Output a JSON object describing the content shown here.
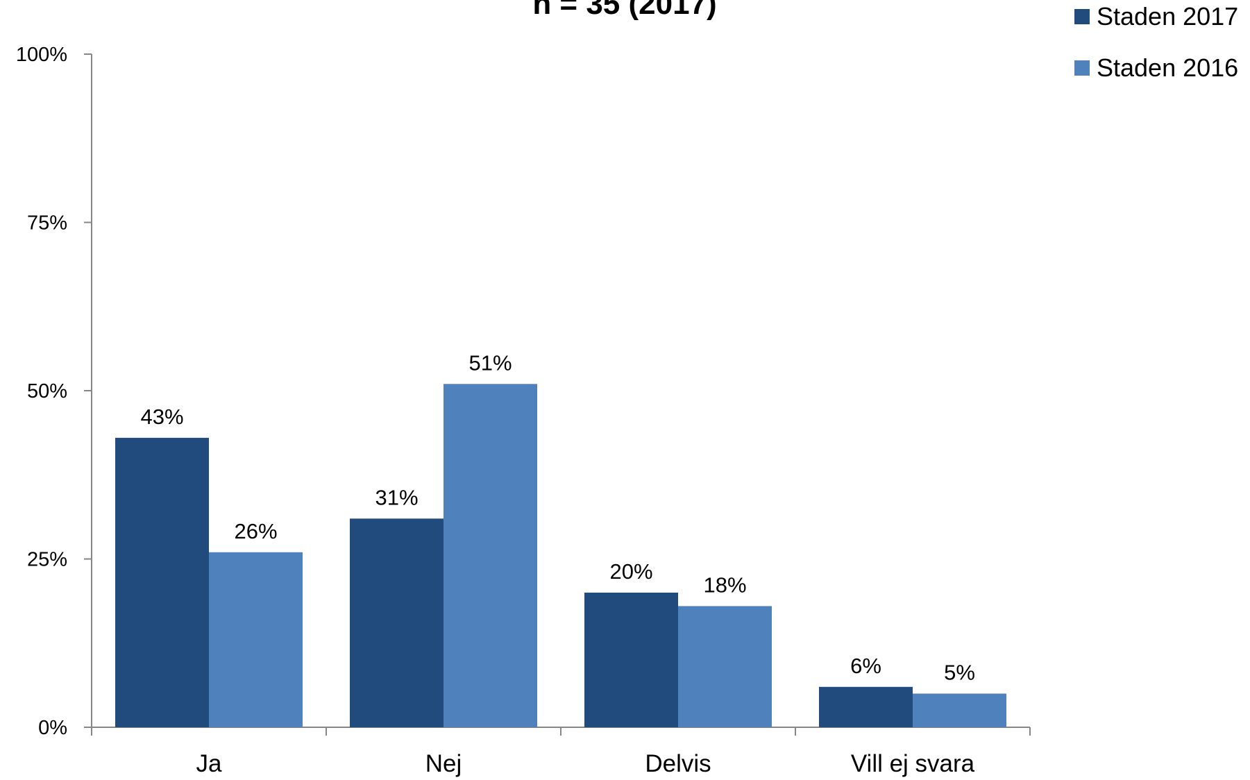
{
  "chart_data": {
    "type": "bar",
    "title": "n = 35 (2017)",
    "categories": [
      "Ja",
      "Nej",
      "Delvis",
      "Vill ej svara"
    ],
    "series": [
      {
        "name": "Staden 2017",
        "color": "#214A7D",
        "values": [
          43,
          31,
          20,
          6
        ],
        "labels": [
          "43%",
          "31%",
          "20%",
          "6%"
        ]
      },
      {
        "name": "Staden 2016",
        "color": "#4F81BD",
        "values": [
          26,
          51,
          18,
          5
        ],
        "labels": [
          "26%",
          "51%",
          "18%",
          "5%"
        ]
      }
    ],
    "yticks": [
      {
        "value": 0,
        "label": "0%"
      },
      {
        "value": 25,
        "label": "25%"
      },
      {
        "value": 50,
        "label": "50%"
      },
      {
        "value": 75,
        "label": "75%"
      },
      {
        "value": 100,
        "label": "100%"
      }
    ],
    "ylim": [
      0,
      100
    ],
    "xlabel": "",
    "ylabel": "",
    "grid": false,
    "legend_position": "top-right"
  }
}
